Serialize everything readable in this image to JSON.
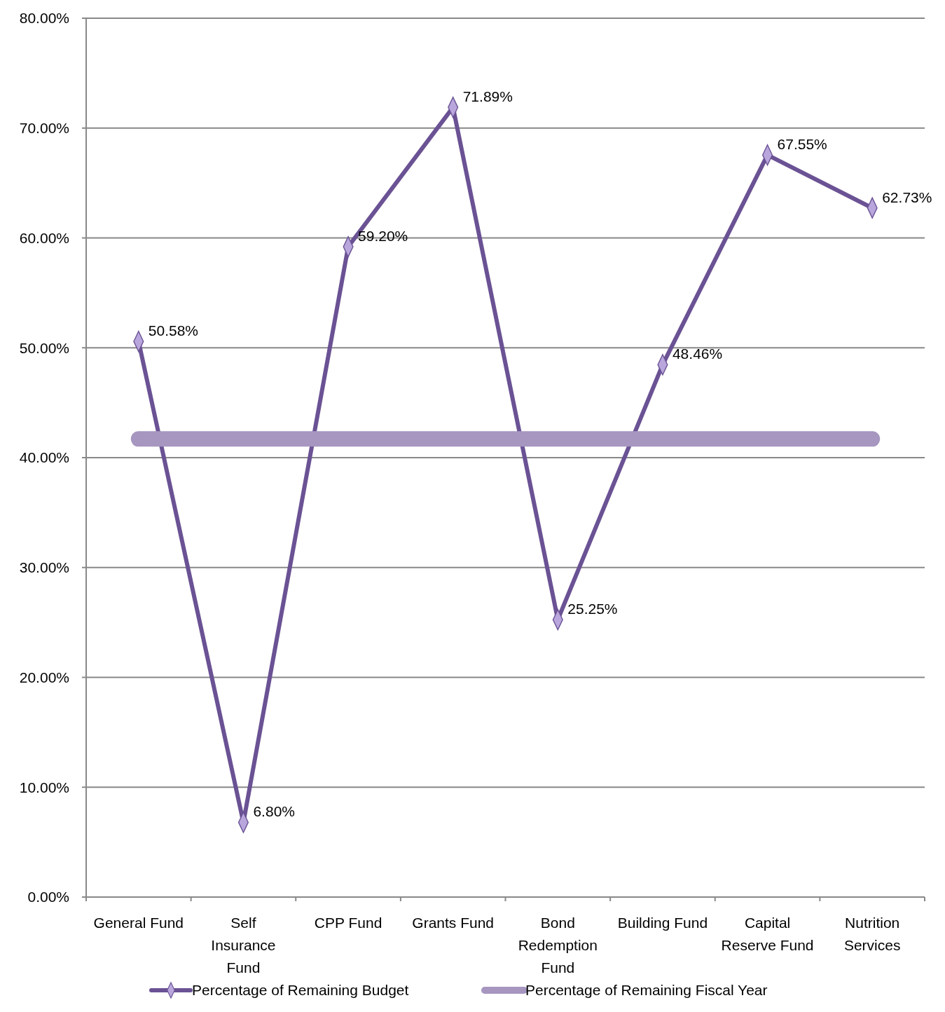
{
  "chart_data": {
    "type": "line",
    "categories": [
      "General Fund",
      "Self Insurance Fund",
      "CPP Fund",
      "Grants Fund",
      "Bond Redemption Fund",
      "Building Fund",
      "Capital Reserve Fund",
      "Nutrition Services"
    ],
    "series": [
      {
        "name": "Percentage of Remaining Budget",
        "color": "#6a5294",
        "values": [
          50.58,
          6.8,
          59.2,
          71.89,
          25.25,
          48.46,
          67.55,
          62.73
        ],
        "value_labels": [
          "50.58%",
          "6.80%",
          "59.20%",
          "71.89%",
          "25.25%",
          "48.46%",
          "67.55%",
          "62.73%"
        ],
        "marker": "diamond"
      },
      {
        "name": "Percentage of Remaining Fiscal Year",
        "color": "#a696c0",
        "values": [
          41.7,
          41.7,
          41.7,
          41.7,
          41.7,
          41.7,
          41.7,
          41.7
        ],
        "marker": "none"
      }
    ],
    "ylim": [
      0,
      80
    ],
    "yticks": [
      {
        "value": 0,
        "label": "0.00%"
      },
      {
        "value": 10,
        "label": "10.00%"
      },
      {
        "value": 20,
        "label": "20.00%"
      },
      {
        "value": 30,
        "label": "30.00%"
      },
      {
        "value": 40,
        "label": "40.00%"
      },
      {
        "value": 50,
        "label": "50.00%"
      },
      {
        "value": 60,
        "label": "60.00%"
      },
      {
        "value": 70,
        "label": "70.00%"
      },
      {
        "value": 80,
        "label": "80.00%"
      }
    ],
    "grid": "y",
    "legend": "bottom"
  }
}
